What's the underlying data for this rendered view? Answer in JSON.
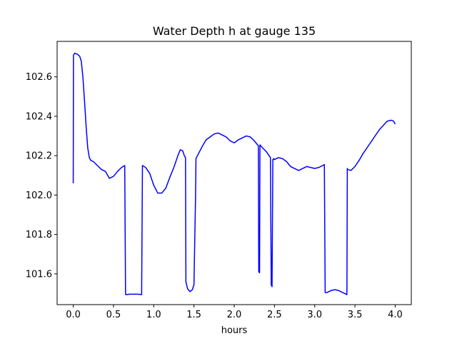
{
  "chart_data": {
    "type": "line",
    "title": "Water Depth h at gauge 135",
    "xlabel": "hours",
    "ylabel": "",
    "xlim": [
      -0.2,
      4.2
    ],
    "ylim": [
      101.444,
      102.78
    ],
    "xticks": [
      0.0,
      0.5,
      1.0,
      1.5,
      2.0,
      2.5,
      3.0,
      3.5,
      4.0
    ],
    "xtick_labels": [
      "0.0",
      "0.5",
      "1.0",
      "1.5",
      "2.0",
      "2.5",
      "3.0",
      "3.5",
      "4.0"
    ],
    "yticks": [
      101.6,
      101.8,
      102.0,
      102.2,
      102.4,
      102.6
    ],
    "ytick_labels": [
      "101.6",
      "101.8",
      "102.0",
      "102.2",
      "102.4",
      "102.6"
    ],
    "grid": false,
    "legend": "none",
    "series": [
      {
        "color": "#0000ff",
        "x": [
          0.0,
          0.003,
          0.02,
          0.05,
          0.08,
          0.1,
          0.12,
          0.14,
          0.16,
          0.18,
          0.2,
          0.22,
          0.25,
          0.3,
          0.35,
          0.4,
          0.45,
          0.5,
          0.55,
          0.6,
          0.64,
          0.65,
          0.67,
          0.7,
          0.8,
          0.85,
          0.86,
          0.9,
          0.95,
          1.0,
          1.05,
          1.1,
          1.15,
          1.2,
          1.25,
          1.3,
          1.33,
          1.36,
          1.38,
          1.395,
          1.4,
          1.42,
          1.45,
          1.48,
          1.5,
          1.52,
          1.525,
          1.55,
          1.6,
          1.65,
          1.7,
          1.75,
          1.8,
          1.85,
          1.9,
          1.95,
          2.0,
          2.05,
          2.1,
          2.15,
          2.2,
          2.25,
          2.3,
          2.305,
          2.31,
          2.315,
          2.32,
          2.35,
          2.4,
          2.45,
          2.46,
          2.47,
          2.48,
          2.49,
          2.5,
          2.55,
          2.6,
          2.65,
          2.7,
          2.75,
          2.8,
          2.85,
          2.9,
          2.95,
          3.0,
          3.05,
          3.1,
          3.12,
          3.13,
          3.15,
          3.2,
          3.25,
          3.3,
          3.35,
          3.4,
          3.405,
          3.41,
          3.45,
          3.5,
          3.55,
          3.6,
          3.7,
          3.8,
          3.9,
          3.95,
          3.98,
          4.0
        ],
        "y": [
          102.06,
          102.71,
          102.72,
          102.715,
          102.705,
          102.68,
          102.6,
          102.48,
          102.35,
          102.24,
          102.19,
          102.175,
          102.17,
          102.15,
          102.13,
          102.12,
          102.085,
          102.095,
          102.12,
          102.14,
          102.15,
          101.495,
          101.495,
          101.497,
          101.497,
          101.495,
          102.15,
          102.14,
          102.11,
          102.05,
          102.01,
          102.01,
          102.035,
          102.09,
          102.14,
          102.2,
          102.23,
          102.225,
          102.2,
          102.19,
          101.56,
          101.525,
          101.51,
          101.52,
          101.545,
          102.0,
          102.185,
          102.205,
          102.245,
          102.28,
          102.295,
          102.31,
          102.315,
          102.305,
          102.295,
          102.275,
          102.265,
          102.28,
          102.29,
          102.3,
          102.295,
          102.275,
          102.25,
          101.61,
          101.61,
          101.605,
          102.255,
          102.24,
          102.22,
          102.19,
          101.545,
          101.535,
          102.18,
          102.185,
          102.18,
          102.19,
          102.185,
          102.17,
          102.145,
          102.135,
          102.125,
          102.135,
          102.145,
          102.14,
          102.135,
          102.14,
          102.15,
          102.155,
          101.505,
          101.505,
          101.515,
          101.52,
          101.515,
          101.505,
          101.495,
          102.135,
          102.13,
          102.125,
          102.145,
          102.175,
          102.21,
          102.27,
          102.33,
          102.375,
          102.38,
          102.375,
          102.36
        ]
      }
    ]
  }
}
